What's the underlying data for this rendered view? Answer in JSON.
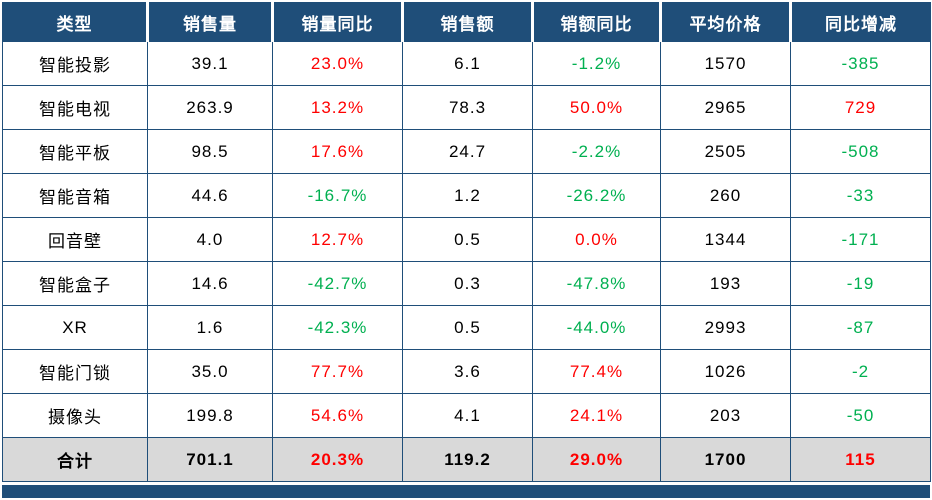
{
  "colors": {
    "header_bg": "#1F4E79",
    "border": "#1F4E79",
    "positive_value": "#FF0000",
    "negative_value": "#00B050",
    "total_row_bg": "#D9D9D9"
  },
  "table": {
    "headers": [
      "类型",
      "销售量",
      "销量同比",
      "销售额",
      "销额同比",
      "平均价格",
      "同比增减"
    ],
    "rows": [
      {
        "cells": [
          {
            "text": "智能投影"
          },
          {
            "text": "39.1"
          },
          {
            "text": "23.0%",
            "color": "red"
          },
          {
            "text": "6.1"
          },
          {
            "text": "-1.2%",
            "color": "green"
          },
          {
            "text": "1570"
          },
          {
            "text": "-385",
            "color": "green"
          }
        ]
      },
      {
        "cells": [
          {
            "text": "智能电视"
          },
          {
            "text": "263.9"
          },
          {
            "text": "13.2%",
            "color": "red"
          },
          {
            "text": "78.3"
          },
          {
            "text": "50.0%",
            "color": "red"
          },
          {
            "text": "2965"
          },
          {
            "text": "729",
            "color": "red"
          }
        ]
      },
      {
        "cells": [
          {
            "text": "智能平板"
          },
          {
            "text": "98.5"
          },
          {
            "text": "17.6%",
            "color": "red"
          },
          {
            "text": "24.7"
          },
          {
            "text": "-2.2%",
            "color": "green"
          },
          {
            "text": "2505"
          },
          {
            "text": "-508",
            "color": "green"
          }
        ]
      },
      {
        "cells": [
          {
            "text": "智能音箱"
          },
          {
            "text": "44.6"
          },
          {
            "text": "-16.7%",
            "color": "green"
          },
          {
            "text": "1.2"
          },
          {
            "text": "-26.2%",
            "color": "green"
          },
          {
            "text": "260"
          },
          {
            "text": "-33",
            "color": "green"
          }
        ]
      },
      {
        "cells": [
          {
            "text": "回音壁"
          },
          {
            "text": "4.0"
          },
          {
            "text": "12.7%",
            "color": "red"
          },
          {
            "text": "0.5"
          },
          {
            "text": "0.0%",
            "color": "red"
          },
          {
            "text": "1344"
          },
          {
            "text": "-171",
            "color": "green"
          }
        ]
      },
      {
        "cells": [
          {
            "text": "智能盒子"
          },
          {
            "text": "14.6"
          },
          {
            "text": "-42.7%",
            "color": "green"
          },
          {
            "text": "0.3"
          },
          {
            "text": "-47.8%",
            "color": "green"
          },
          {
            "text": "193"
          },
          {
            "text": "-19",
            "color": "green"
          }
        ]
      },
      {
        "cells": [
          {
            "text": "XR"
          },
          {
            "text": "1.6"
          },
          {
            "text": "-42.3%",
            "color": "green"
          },
          {
            "text": "0.5"
          },
          {
            "text": "-44.0%",
            "color": "green"
          },
          {
            "text": "2993"
          },
          {
            "text": "-87",
            "color": "green"
          }
        ]
      },
      {
        "cells": [
          {
            "text": "智能门锁"
          },
          {
            "text": "35.0"
          },
          {
            "text": "77.7%",
            "color": "red"
          },
          {
            "text": "3.6"
          },
          {
            "text": "77.4%",
            "color": "red"
          },
          {
            "text": "1026"
          },
          {
            "text": "-2",
            "color": "green"
          }
        ]
      },
      {
        "cells": [
          {
            "text": "摄像头"
          },
          {
            "text": "199.8"
          },
          {
            "text": "54.6%",
            "color": "red"
          },
          {
            "text": "4.1"
          },
          {
            "text": "24.1%",
            "color": "red"
          },
          {
            "text": "203"
          },
          {
            "text": "-50",
            "color": "green"
          }
        ]
      },
      {
        "total": true,
        "cells": [
          {
            "text": "合计"
          },
          {
            "text": "701.1"
          },
          {
            "text": "20.3%",
            "color": "red"
          },
          {
            "text": "119.2"
          },
          {
            "text": "29.0%",
            "color": "red"
          },
          {
            "text": "1700"
          },
          {
            "text": "115",
            "color": "red"
          }
        ]
      }
    ]
  },
  "chart_data": {
    "type": "table",
    "columns": [
      "类型",
      "销售量",
      "销量同比",
      "销售额",
      "销额同比",
      "平均价格",
      "同比增减"
    ],
    "rows": [
      [
        "智能投影",
        39.1,
        "23.0%",
        6.1,
        "-1.2%",
        1570,
        -385
      ],
      [
        "智能电视",
        263.9,
        "13.2%",
        78.3,
        "50.0%",
        2965,
        729
      ],
      [
        "智能平板",
        98.5,
        "17.6%",
        24.7,
        "-2.2%",
        2505,
        -508
      ],
      [
        "智能音箱",
        44.6,
        "-16.7%",
        1.2,
        "-26.2%",
        260,
        -33
      ],
      [
        "回音壁",
        4.0,
        "12.7%",
        0.5,
        "0.0%",
        1344,
        -171
      ],
      [
        "智能盒子",
        14.6,
        "-42.7%",
        0.3,
        "-47.8%",
        193,
        -19
      ],
      [
        "XR",
        1.6,
        "-42.3%",
        0.5,
        "-44.0%",
        2993,
        -87
      ],
      [
        "智能门锁",
        35.0,
        "77.7%",
        3.6,
        "77.4%",
        1026,
        -2
      ],
      [
        "摄像头",
        199.8,
        "54.6%",
        4.1,
        "24.1%",
        203,
        -50
      ],
      [
        "合计",
        701.1,
        "20.3%",
        119.2,
        "29.0%",
        1700,
        115
      ]
    ]
  }
}
